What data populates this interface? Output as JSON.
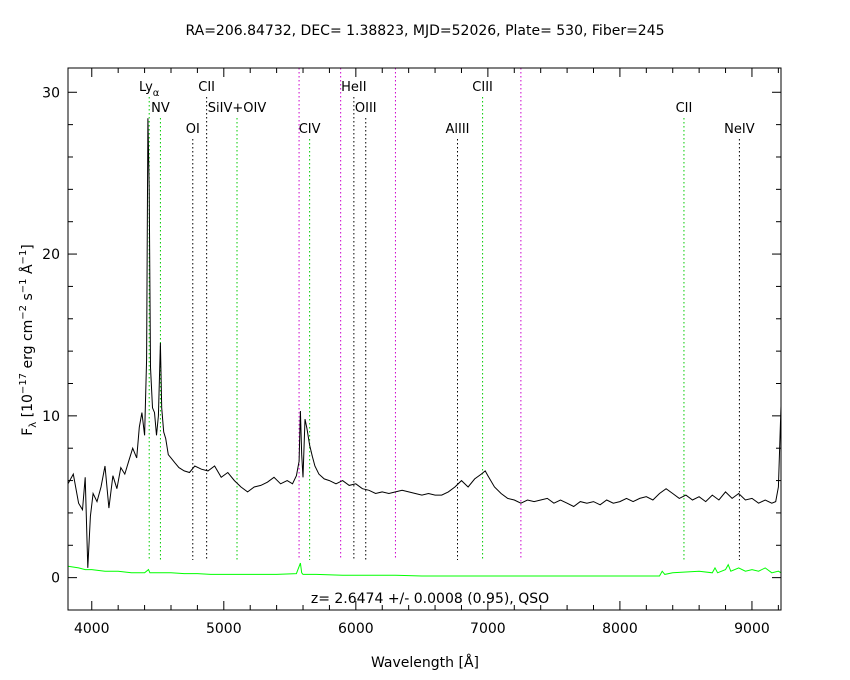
{
  "chart_data": {
    "type": "line",
    "title": "RA=206.84732, DEC= 1.38823, MJD=52026, Plate= 530, Fiber=245",
    "xlabel": "Wavelength [Å]",
    "ylabel": "F_λ [10^-17 erg cm^-2 s^-1 Å^-1]",
    "ylabel_parts": {
      "f": "F",
      "lambda": "λ",
      "open": " [10",
      "exp17": "−17",
      "erg": " erg cm",
      "exp2": "−2",
      "s": " s",
      "exp1a": "−1",
      "angstrom": " Å",
      "exp1b": "−1",
      "close": "]"
    },
    "xlim": [
      3820,
      9220
    ],
    "ylim": [
      -2,
      31.5
    ],
    "x_ticks": [
      4000,
      5000,
      6000,
      7000,
      8000,
      9000
    ],
    "y_ticks": [
      0,
      10,
      20,
      30
    ],
    "annotation": "z= 2.6474 +/- 0.0008 (0.95), QSO",
    "series": [
      {
        "color": "#000000",
        "x": [
          3820,
          3860,
          3900,
          3930,
          3950,
          3970,
          3990,
          4010,
          4040,
          4070,
          4100,
          4130,
          4160,
          4190,
          4220,
          4250,
          4280,
          4310,
          4340,
          4360,
          4380,
          4400,
          4415,
          4425,
          4435,
          4445,
          4460,
          4475,
          4490,
          4505,
          4520,
          4530,
          4545,
          4560,
          4580,
          4600,
          4630,
          4660,
          4700,
          4740,
          4780,
          4830,
          4880,
          4930,
          4980,
          5030,
          5080,
          5130,
          5180,
          5230,
          5280,
          5330,
          5380,
          5430,
          5480,
          5520,
          5550,
          5570,
          5580,
          5590,
          5600,
          5615,
          5630,
          5650,
          5670,
          5690,
          5720,
          5760,
          5800,
          5850,
          5900,
          5950,
          6000,
          6050,
          6100,
          6150,
          6200,
          6250,
          6300,
          6350,
          6400,
          6450,
          6500,
          6550,
          6600,
          6650,
          6700,
          6750,
          6800,
          6850,
          6900,
          6950,
          6980,
          7000,
          7050,
          7100,
          7150,
          7200,
          7250,
          7300,
          7350,
          7400,
          7450,
          7500,
          7550,
          7600,
          7650,
          7700,
          7750,
          7800,
          7850,
          7900,
          7950,
          8000,
          8050,
          8100,
          8150,
          8200,
          8250,
          8300,
          8350,
          8400,
          8450,
          8500,
          8550,
          8600,
          8650,
          8700,
          8750,
          8800,
          8850,
          8900,
          8950,
          9000,
          9050,
          9100,
          9150,
          9180,
          9200,
          9220
        ],
        "y": [
          5.8,
          6.4,
          4.6,
          4.2,
          6.2,
          0.6,
          3.8,
          5.2,
          4.7,
          5.6,
          6.9,
          4.3,
          6.3,
          5.5,
          6.8,
          6.4,
          7.2,
          8.0,
          7.4,
          9.3,
          10.2,
          8.8,
          13.5,
          28.4,
          24.0,
          13.0,
          10.5,
          10.2,
          8.8,
          10.0,
          14.5,
          10.5,
          9.0,
          8.6,
          7.6,
          7.4,
          7.1,
          6.8,
          6.6,
          6.5,
          6.9,
          6.7,
          6.6,
          6.9,
          6.2,
          6.5,
          6.0,
          5.6,
          5.3,
          5.6,
          5.7,
          5.9,
          6.2,
          5.8,
          6.0,
          5.8,
          6.3,
          7.2,
          10.3,
          7.6,
          6.2,
          9.8,
          9.2,
          8.2,
          7.5,
          6.9,
          6.4,
          6.1,
          6.0,
          5.8,
          6.0,
          5.7,
          5.8,
          5.5,
          5.4,
          5.2,
          5.3,
          5.2,
          5.3,
          5.4,
          5.3,
          5.2,
          5.1,
          5.2,
          5.1,
          5.1,
          5.3,
          5.6,
          6.0,
          5.6,
          6.1,
          6.4,
          6.6,
          6.3,
          5.6,
          5.2,
          4.9,
          4.8,
          4.6,
          4.8,
          4.7,
          4.8,
          4.9,
          4.6,
          4.8,
          4.6,
          4.4,
          4.7,
          4.6,
          4.7,
          4.5,
          4.8,
          4.6,
          4.7,
          4.9,
          4.7,
          4.9,
          5.0,
          4.8,
          5.2,
          5.5,
          5.2,
          4.9,
          5.1,
          4.8,
          5.0,
          4.7,
          5.1,
          4.8,
          5.3,
          4.9,
          5.2,
          4.8,
          4.9,
          4.6,
          4.8,
          4.6,
          4.7,
          5.6,
          10.6
        ]
      },
      {
        "color": "#00ff00",
        "x": [
          3820,
          3900,
          3950,
          4000,
          4100,
          4200,
          4300,
          4400,
          4430,
          4440,
          4500,
          4600,
          4700,
          4800,
          4900,
          5000,
          5200,
          5400,
          5550,
          5580,
          5590,
          5600,
          5700,
          5900,
          6100,
          6300,
          6500,
          6700,
          6900,
          7100,
          7300,
          7500,
          7700,
          7900,
          8100,
          8300,
          8320,
          8340,
          8400,
          8500,
          8600,
          8700,
          8720,
          8740,
          8800,
          8820,
          8840,
          8900,
          8950,
          9000,
          9050,
          9100,
          9150,
          9200,
          9220
        ],
        "y": [
          0.7,
          0.6,
          0.5,
          0.5,
          0.4,
          0.4,
          0.3,
          0.3,
          0.5,
          0.3,
          0.3,
          0.3,
          0.25,
          0.25,
          0.2,
          0.2,
          0.2,
          0.2,
          0.25,
          0.9,
          0.3,
          0.2,
          0.2,
          0.15,
          0.15,
          0.15,
          0.1,
          0.1,
          0.1,
          0.1,
          0.1,
          0.1,
          0.1,
          0.1,
          0.1,
          0.1,
          0.4,
          0.2,
          0.3,
          0.35,
          0.4,
          0.3,
          0.6,
          0.3,
          0.5,
          0.8,
          0.4,
          0.6,
          0.4,
          0.5,
          0.4,
          0.6,
          0.3,
          0.4,
          0.3
        ]
      }
    ],
    "line_markers": [
      {
        "x": 4435,
        "color": "#00cc00",
        "label": "Ly",
        "sub": "α",
        "row": 1
      },
      {
        "x": 4520,
        "color": "#00cc00",
        "label": "NV",
        "row": 2
      },
      {
        "x": 4765,
        "color": "#000000",
        "label": "OI",
        "row": 3
      },
      {
        "x": 4870,
        "color": "#000000",
        "label": "CII",
        "row": 1
      },
      {
        "x": 5100,
        "color": "#00cc00",
        "label": "SiIV+OIV",
        "row": 2
      },
      {
        "x": 5570,
        "color": "#cc00cc",
        "label": "",
        "row": 0
      },
      {
        "x": 5650,
        "color": "#00cc00",
        "label": "CIV",
        "row": 3
      },
      {
        "x": 5885,
        "color": "#cc00cc",
        "label": "",
        "row": 0
      },
      {
        "x": 5985,
        "color": "#000000",
        "label": "HeII",
        "row": 1
      },
      {
        "x": 6075,
        "color": "#000000",
        "label": "OIII",
        "row": 2
      },
      {
        "x": 6300,
        "color": "#cc00cc",
        "label": "",
        "row": 0
      },
      {
        "x": 6770,
        "color": "#000000",
        "label": "AlIII",
        "row": 3
      },
      {
        "x": 6960,
        "color": "#00cc00",
        "label": "CIII",
        "row": 1
      },
      {
        "x": 7250,
        "color": "#cc00cc",
        "label": "",
        "row": 0
      },
      {
        "x": 8485,
        "color": "#00cc00",
        "label": "CII",
        "row": 2
      },
      {
        "x": 8905,
        "color": "#000000",
        "label": "NeIV",
        "row": 3
      }
    ]
  }
}
